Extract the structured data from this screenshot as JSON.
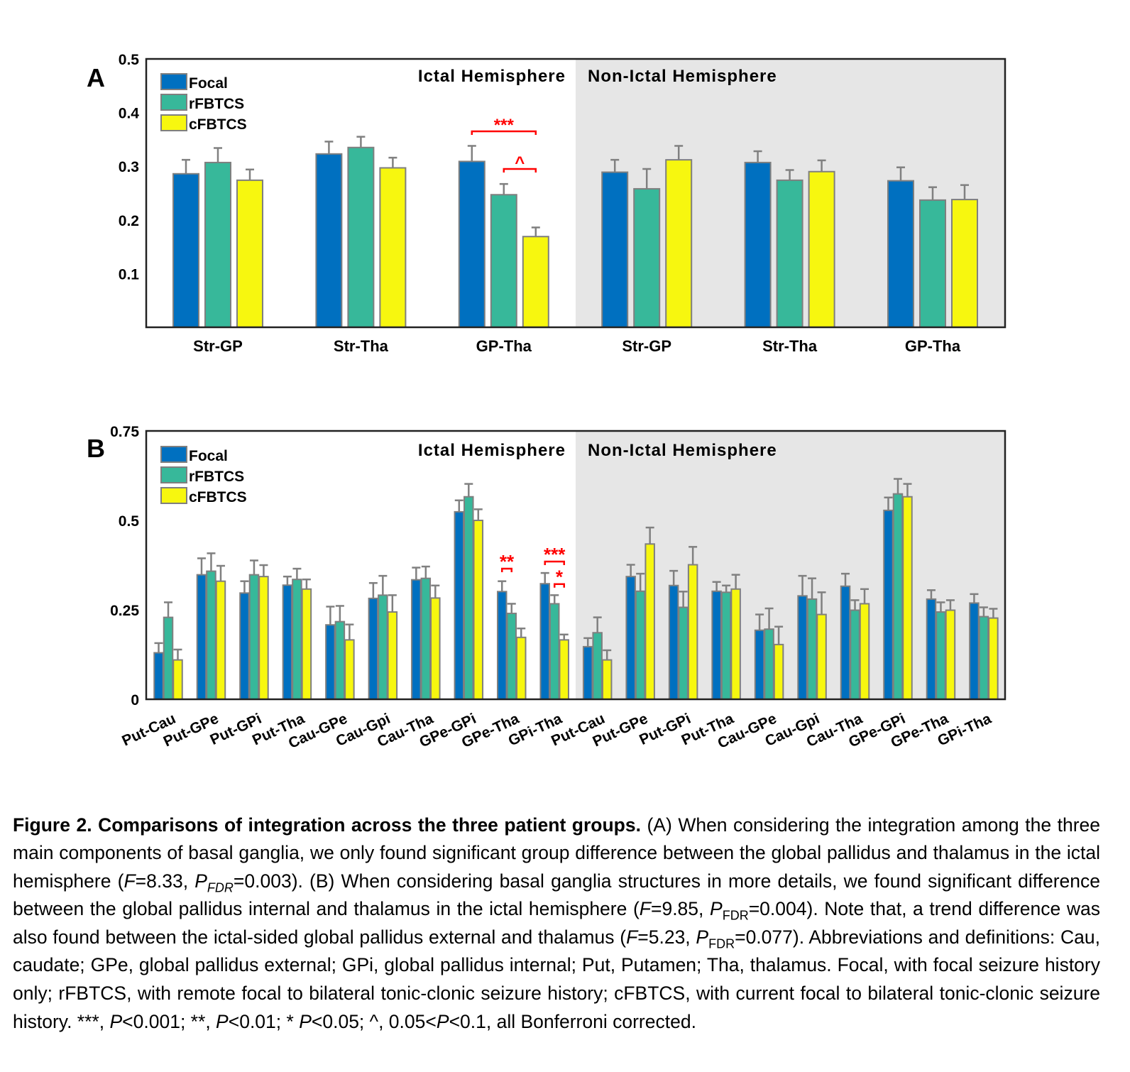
{
  "colors": {
    "Focal": "#0070c0",
    "rFBTCS": "#37b89a",
    "cFBTCS": "#f7f70f",
    "error_bar": "#808080",
    "significance": "#ff0000",
    "non_ictal_background": "#e6e6e6"
  },
  "chart_data": [
    {
      "panel_label": "A",
      "type": "bar",
      "region_labels": [
        "Ictal Hemisphere",
        "Non-Ictal Hemisphere"
      ],
      "categories": [
        "Str-GP",
        "Str-Tha",
        "GP-Tha",
        "Str-GP",
        "Str-Tha",
        "GP-Tha"
      ],
      "ylim": [
        0,
        0.5
      ],
      "yticks": [
        "0.1",
        "0.2",
        "0.3",
        "0.4",
        "0.5"
      ],
      "ytick_values": [
        0.1,
        0.2,
        0.3,
        0.4,
        0.5
      ],
      "legend": "top-left",
      "grid": false,
      "series": [
        {
          "name": "Focal",
          "values": [
            0.286,
            0.323,
            0.309,
            0.289,
            0.307,
            0.273
          ],
          "errors": [
            0.026,
            0.023,
            0.029,
            0.023,
            0.021,
            0.025
          ]
        },
        {
          "name": "rFBTCS",
          "values": [
            0.307,
            0.335,
            0.247,
            0.258,
            0.274,
            0.237
          ],
          "errors": [
            0.027,
            0.02,
            0.02,
            0.037,
            0.019,
            0.024
          ]
        },
        {
          "name": "cFBTCS",
          "values": [
            0.274,
            0.297,
            0.169,
            0.312,
            0.29,
            0.238
          ],
          "errors": [
            0.02,
            0.019,
            0.017,
            0.026,
            0.021,
            0.027
          ]
        }
      ],
      "annotations": [
        {
          "label": "***",
          "category_index": 2,
          "from": "Focal",
          "to": "cFBTCS",
          "y": 0.365
        },
        {
          "label": "^",
          "category_index": 2,
          "from": "rFBTCS",
          "to": "cFBTCS",
          "y": 0.295
        }
      ]
    },
    {
      "panel_label": "B",
      "type": "bar",
      "region_labels": [
        "Ictal Hemisphere",
        "Non-Ictal Hemisphere"
      ],
      "categories": [
        "Put-Cau",
        "Put-GPe",
        "Put-GPi",
        "Put-Tha",
        "Cau-GPe",
        "Cau-Gpi",
        "Cau-Tha",
        "GPe-GPi",
        "GPe-Tha",
        "GPi-Tha",
        "Put-Cau",
        "Put-GPe",
        "Put-GPi",
        "Put-Tha",
        "Cau-GPe",
        "Cau-Gpi",
        "Cau-Tha",
        "GPe-GPi",
        "GPe-Tha",
        "GPi-Tha"
      ],
      "ylim": [
        0,
        0.75
      ],
      "yticks": [
        "0",
        "0.25",
        "0.5",
        "0.75"
      ],
      "ytick_values": [
        0,
        0.25,
        0.5,
        0.75
      ],
      "legend": "top-left",
      "grid": false,
      "series": [
        {
          "name": "Focal",
          "values": [
            0.13,
            0.348,
            0.297,
            0.319,
            0.208,
            0.282,
            0.334,
            0.524,
            0.301,
            0.323,
            0.147,
            0.343,
            0.318,
            0.302,
            0.193,
            0.289,
            0.316,
            0.528,
            0.28,
            0.269
          ],
          "errors": [
            0.027,
            0.046,
            0.033,
            0.024,
            0.051,
            0.043,
            0.034,
            0.032,
            0.029,
            0.03,
            0.024,
            0.033,
            0.041,
            0.026,
            0.044,
            0.056,
            0.035,
            0.036,
            0.025,
            0.025
          ]
        },
        {
          "name": "rFBTCS",
          "values": [
            0.229,
            0.358,
            0.348,
            0.335,
            0.217,
            0.291,
            0.338,
            0.566,
            0.24,
            0.267,
            0.186,
            0.302,
            0.257,
            0.299,
            0.196,
            0.28,
            0.249,
            0.574,
            0.244,
            0.231
          ],
          "errors": [
            0.042,
            0.05,
            0.04,
            0.03,
            0.044,
            0.054,
            0.033,
            0.036,
            0.027,
            0.024,
            0.043,
            0.049,
            0.044,
            0.019,
            0.058,
            0.058,
            0.028,
            0.042,
            0.027,
            0.026
          ]
        },
        {
          "name": "cFBTCS",
          "values": [
            0.11,
            0.33,
            0.343,
            0.308,
            0.166,
            0.244,
            0.283,
            0.5,
            0.173,
            0.166,
            0.11,
            0.434,
            0.376,
            0.308,
            0.153,
            0.237,
            0.267,
            0.566,
            0.249,
            0.227
          ],
          "errors": [
            0.029,
            0.043,
            0.032,
            0.027,
            0.043,
            0.047,
            0.035,
            0.031,
            0.025,
            0.015,
            0.027,
            0.046,
            0.05,
            0.04,
            0.05,
            0.062,
            0.041,
            0.036,
            0.028,
            0.026
          ]
        }
      ],
      "annotations": [
        {
          "label": "**",
          "category_index": 8,
          "from": "Focal",
          "to": "rFBTCS",
          "y": 0.365
        },
        {
          "label": "***",
          "category_index": 9,
          "from": "Focal",
          "to": "cFBTCS",
          "y": 0.385
        },
        {
          "label": "*",
          "category_index": 9,
          "from": "rFBTCS",
          "to": "cFBTCS",
          "y": 0.322
        }
      ]
    }
  ],
  "caption": [
    {
      "t": "Figure 2. Comparisons of integration across the three patient groups.",
      "b": true
    },
    {
      "t": " (A) When considering the integration among the three main components of basal ganglia, we only found significant group difference between the global pallidus and thalamus in the ictal hemisphere ("
    },
    {
      "t": "F",
      "i": true
    },
    {
      "t": "=8.33, "
    },
    {
      "t": "P",
      "i": true
    },
    {
      "t": "FDR",
      "i": true,
      "sub": true
    },
    {
      "t": "=0.003). (B) When considering basal ganglia structures in more details, we found significant difference between the global pallidus internal and thalamus in the ictal hemisphere ("
    },
    {
      "t": "F",
      "i": true
    },
    {
      "t": "=9.85, "
    },
    {
      "t": "P",
      "i": true
    },
    {
      "t": "FDR",
      "sub": true
    },
    {
      "t": "=0.004). Note that, a trend difference was also found between the ictal-sided global pallidus external and thalamus ("
    },
    {
      "t": "F",
      "i": true
    },
    {
      "t": "=5.23, "
    },
    {
      "t": "P",
      "i": true
    },
    {
      "t": "FDR",
      "sub": true
    },
    {
      "t": "=0.077). Abbreviations and definitions: Cau, caudate; GPe, global pallidus external; GPi, global pallidus internal; Put, Putamen; Tha, thalamus. Focal, with focal seizure history only; rFBTCS, with remote focal to bilateral tonic-clonic seizure history; cFBTCS, with current focal to bilateral tonic-clonic seizure history. ***, "
    },
    {
      "t": "P",
      "i": true
    },
    {
      "t": "<0.001; **, "
    },
    {
      "t": "P",
      "i": true
    },
    {
      "t": "<0.01; * "
    },
    {
      "t": "P",
      "i": true
    },
    {
      "t": "<0.05; ^, 0.05<"
    },
    {
      "t": "P",
      "i": true
    },
    {
      "t": "<0.1, all Bonferroni corrected."
    }
  ]
}
